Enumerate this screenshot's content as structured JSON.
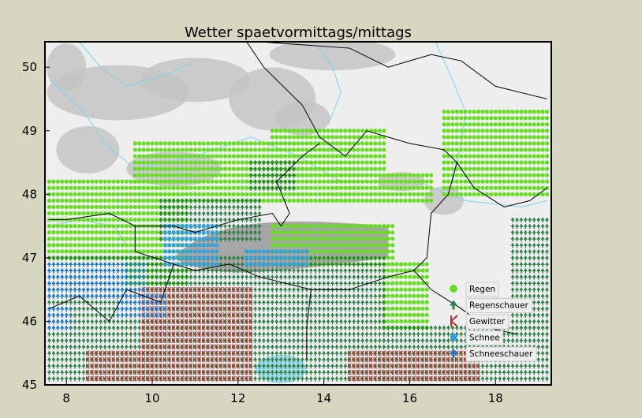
{
  "chart_data": {
    "type": "scatter",
    "title": "Wetter spaetvormittags/mittags",
    "xlabel": "",
    "ylabel": "",
    "xlim": [
      7.5,
      19.3
    ],
    "ylim": [
      45,
      50.4
    ],
    "x_ticks": [
      "8",
      "10",
      "12",
      "14",
      "16",
      "18"
    ],
    "y_ticks": [
      "45",
      "46",
      "47",
      "48",
      "49",
      "50"
    ],
    "legend_position": "lower-right",
    "series": [
      {
        "name": "Regen",
        "color": "#66dd22",
        "marker": "circle",
        "regions": [
          {
            "x": [
              7.6,
              10.8
            ],
            "y": [
              47.0,
              48.2
            ]
          },
          {
            "x": [
              9.6,
              14.6
            ],
            "y": [
              47.9,
              48.8
            ]
          },
          {
            "x": [
              12.8,
              15.4
            ],
            "y": [
              48.3,
              49.0
            ]
          },
          {
            "x": [
              14.2,
              16.5
            ],
            "y": [
              47.9,
              48.3
            ]
          },
          {
            "x": [
              16.8,
              19.2
            ],
            "y": [
              48.0,
              49.3
            ]
          },
          {
            "x": [
              12.8,
              15.6
            ],
            "y": [
              46.9,
              47.5
            ]
          },
          {
            "x": [
              15.4,
              16.4
            ],
            "y": [
              45.9,
              46.9
            ]
          },
          {
            "x": [
              9.4,
              10.8
            ],
            "y": [
              46.6,
              47.1
            ]
          }
        ]
      },
      {
        "name": "Regenschauer",
        "color": "#2e7d46",
        "marker": "arrow",
        "regions": [
          {
            "x": [
              7.6,
              15.4
            ],
            "y": [
              45.1,
              47.0
            ]
          },
          {
            "x": [
              10.2,
              12.5
            ],
            "y": [
              47.3,
              47.9
            ]
          },
          {
            "x": [
              15.4,
              19.2
            ],
            "y": [
              45.1,
              45.9
            ]
          },
          {
            "x": [
              18.4,
              19.2
            ],
            "y": [
              45.9,
              47.6
            ]
          },
          {
            "x": [
              12.3,
              13.3
            ],
            "y": [
              48.1,
              48.5
            ]
          }
        ]
      },
      {
        "name": "Gewitter",
        "color": "#b22f2f",
        "marker": "K",
        "regions": [
          {
            "x": [
              9.8,
              12.3
            ],
            "y": [
              45.1,
              46.5
            ]
          },
          {
            "x": [
              8.5,
              10.0
            ],
            "y": [
              45.1,
              45.5
            ]
          },
          {
            "x": [
              14.6,
              17.6
            ],
            "y": [
              45.1,
              45.5
            ]
          }
        ]
      },
      {
        "name": "Schnee",
        "color": "#2f9fdd",
        "marker": "dot",
        "regions": [
          {
            "x": [
              10.3,
              11.5
            ],
            "y": [
              46.9,
              47.5
            ]
          },
          {
            "x": [
              12.2,
              13.6
            ],
            "y": [
              46.9,
              47.1
            ]
          }
        ]
      },
      {
        "name": "Schneeschauer",
        "color": "#1e78c8",
        "marker": "arrow",
        "regions": [
          {
            "x": [
              7.6,
              9.8
            ],
            "y": [
              46.4,
              46.9
            ]
          },
          {
            "x": [
              7.6,
              8.1
            ],
            "y": [
              45.9,
              46.2
            ]
          },
          {
            "x": [
              9.2,
              10.3
            ],
            "y": [
              46.1,
              46.4
            ]
          }
        ]
      }
    ],
    "colors": {
      "background": "#d7d6c1",
      "map_land": "#eeeeee",
      "terrain": "#c4c4c4",
      "river": "#7fd2ec",
      "border": "#000000"
    }
  }
}
